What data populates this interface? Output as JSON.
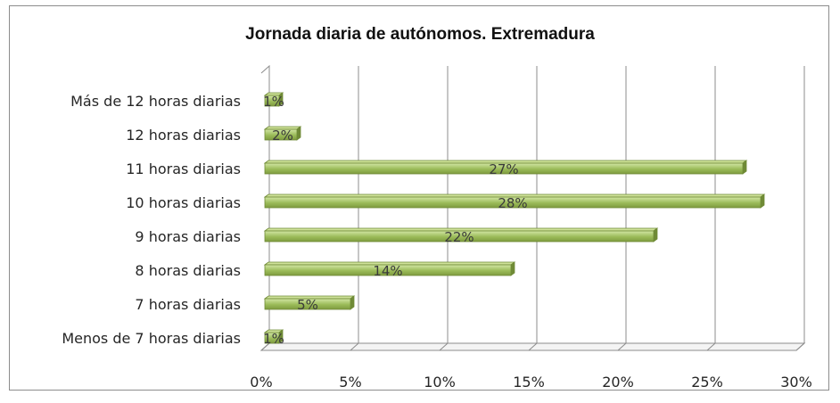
{
  "chart_data": {
    "type": "bar",
    "orientation": "horizontal",
    "title": "Jornada diaria de autónomos. Extremadura",
    "categories": [
      "Más de 12 horas diarias",
      "12 horas diarias",
      "11 horas diarias",
      "10 horas diarias",
      "9 horas diarias",
      "8 horas diarias",
      "7 horas diarias",
      "Menos de 7 horas diarias"
    ],
    "values": [
      1,
      2,
      27,
      28,
      22,
      14,
      5,
      1
    ],
    "data_labels": [
      "1%",
      "2%",
      "27%",
      "28%",
      "22%",
      "14%",
      "5%",
      "1%"
    ],
    "xticks": [
      "0%",
      "5%",
      "10%",
      "15%",
      "20%",
      "25%",
      "30%"
    ],
    "xlim": [
      0,
      30
    ],
    "xlabel": "",
    "ylabel": "",
    "grid": "vertical",
    "legend": "none",
    "bar_color": "#9bbb59",
    "bar_edge_color": "#6f8a36"
  }
}
